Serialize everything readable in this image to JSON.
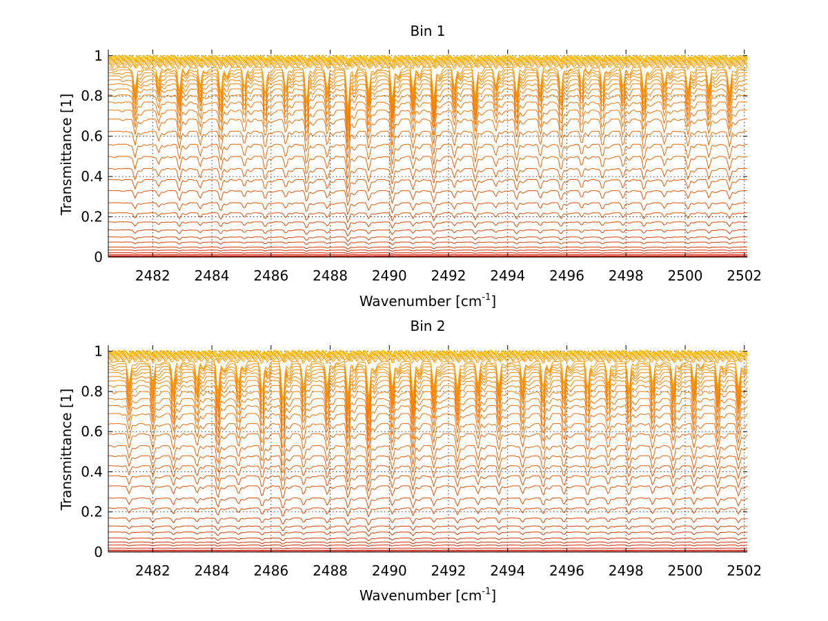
{
  "chart_data": [
    {
      "type": "line",
      "title": "Bin 1",
      "xlabel": "Wavenumber [cm",
      "xlabel_sup": "-1",
      "xlabel_end": "]",
      "ylabel": "Transmittance [1]",
      "xlim": [
        2480.5,
        2502.1
      ],
      "ylim": [
        0,
        1.03
      ],
      "xticks": [
        2482,
        2484,
        2486,
        2488,
        2490,
        2492,
        2494,
        2496,
        2498,
        2500,
        2502
      ],
      "xtick_labels": [
        "2482",
        "2484",
        "2486",
        "2488",
        "2490",
        "2492",
        "2494",
        "2496",
        "2498",
        "2500",
        "2502"
      ],
      "yticks": [
        0,
        0.2,
        0.4,
        0.6,
        0.8,
        1
      ],
      "ytick_labels": [
        "0",
        "0.2",
        "0.4",
        "0.6",
        "0.8",
        "1"
      ],
      "grid": true,
      "series_baselines": [
        0.0,
        0.003,
        0.007,
        0.013,
        0.022,
        0.035,
        0.05,
        0.075,
        0.1,
        0.135,
        0.175,
        0.22,
        0.27,
        0.33,
        0.385,
        0.44,
        0.5,
        0.56,
        0.625,
        0.685,
        0.73,
        0.77,
        0.805,
        0.835,
        0.86,
        0.88,
        0.9,
        0.915,
        0.93,
        0.942,
        0.952,
        0.96,
        0.967,
        0.973,
        0.978,
        0.982,
        0.986,
        0.989,
        0.992,
        0.994
      ],
      "absorption_lines": [
        2481.4,
        2482.2,
        2482.9,
        2483.6,
        2484.3,
        2485.1,
        2485.8,
        2486.5,
        2487.2,
        2487.9,
        2488.6,
        2489.3,
        2490.1,
        2490.8,
        2491.5,
        2492.2,
        2492.9,
        2493.6,
        2494.3,
        2495.1,
        2495.8,
        2496.5,
        2497.2,
        2497.9,
        2498.6,
        2499.3,
        2500.1,
        2500.8,
        2501.5
      ],
      "line_depths": [
        0.5,
        0.35,
        0.55,
        0.45,
        0.6,
        0.4,
        0.55,
        0.45,
        0.7,
        0.5,
        0.9,
        0.6,
        0.75,
        0.5,
        0.7,
        0.45,
        0.6,
        0.4,
        0.55,
        0.45,
        0.6,
        0.4,
        0.5,
        0.45,
        0.55,
        0.4,
        0.5,
        0.45,
        0.55
      ],
      "series_colors": [
        "#c00000",
        "#c80c00",
        "#cc1400",
        "#d01e00",
        "#d22600",
        "#d42e00",
        "#d63400",
        "#d83a00",
        "#da4000",
        "#dc4400",
        "#de4800",
        "#e04c00",
        "#e25000",
        "#e45400",
        "#e65800",
        "#e85c00",
        "#ea6000",
        "#ec6400",
        "#ee6800",
        "#f06c00",
        "#f27000",
        "#f47400",
        "#f67800",
        "#f77c00",
        "#f88000",
        "#f98400",
        "#fa8800",
        "#fb8c00",
        "#fc9000",
        "#fd9400",
        "#fe9800",
        "#ff9c00",
        "#ffa000",
        "#ffa400",
        "#ffa800",
        "#ffac00",
        "#ffb000",
        "#ffb400",
        "#ffb800",
        "#ffbc00"
      ]
    },
    {
      "type": "line",
      "title": "Bin 2",
      "xlabel": "Wavenumber [cm",
      "xlabel_sup": "-1",
      "xlabel_end": "]",
      "ylabel": "Transmittance [1]",
      "xlim": [
        2480.5,
        2502.1
      ],
      "ylim": [
        0,
        1.03
      ],
      "xticks": [
        2482,
        2484,
        2486,
        2488,
        2490,
        2492,
        2494,
        2496,
        2498,
        2500,
        2502
      ],
      "xtick_labels": [
        "2482",
        "2484",
        "2486",
        "2488",
        "2490",
        "2492",
        "2494",
        "2496",
        "2498",
        "2500",
        "2502"
      ],
      "yticks": [
        0,
        0.2,
        0.4,
        0.6,
        0.8,
        1
      ],
      "ytick_labels": [
        "0",
        "0.2",
        "0.4",
        "0.6",
        "0.8",
        "1"
      ],
      "grid": true,
      "series_baselines": [
        0.0,
        0.005,
        0.01,
        0.02,
        0.035,
        0.05,
        0.07,
        0.1,
        0.13,
        0.17,
        0.22,
        0.27,
        0.33,
        0.38,
        0.43,
        0.48,
        0.53,
        0.59,
        0.64,
        0.69,
        0.73,
        0.765,
        0.8,
        0.83,
        0.855,
        0.875,
        0.895,
        0.91,
        0.925,
        0.938,
        0.95,
        0.96,
        0.968,
        0.975,
        0.98,
        0.985,
        0.989,
        0.992,
        0.995,
        0.997
      ],
      "absorption_lines": [
        2481.2,
        2482.0,
        2482.7,
        2483.5,
        2484.2,
        2484.9,
        2485.7,
        2486.4,
        2487.1,
        2487.9,
        2488.6,
        2489.3,
        2490.1,
        2490.8,
        2491.5,
        2492.3,
        2493.0,
        2493.7,
        2494.5,
        2495.2,
        2495.9,
        2496.7,
        2497.4,
        2498.1,
        2498.9,
        2499.6,
        2500.3,
        2501.1,
        2501.8
      ],
      "line_depths": [
        0.45,
        0.5,
        0.55,
        0.45,
        0.7,
        0.5,
        0.65,
        0.8,
        0.55,
        0.6,
        0.75,
        0.85,
        0.6,
        0.7,
        0.55,
        0.6,
        0.5,
        0.55,
        0.5,
        0.6,
        0.5,
        0.55,
        0.5,
        0.55,
        0.5,
        0.6,
        0.5,
        0.55,
        0.6
      ],
      "series_colors": [
        "#c00000",
        "#c80c00",
        "#cc1400",
        "#d01e00",
        "#d22600",
        "#d42e00",
        "#d63400",
        "#d83a00",
        "#da4000",
        "#dc4400",
        "#de4800",
        "#e04c00",
        "#e25000",
        "#e45400",
        "#e65800",
        "#e85c00",
        "#ea6000",
        "#ec6400",
        "#ee6800",
        "#f06c00",
        "#f27000",
        "#f47400",
        "#f67800",
        "#f77c00",
        "#f88000",
        "#f98400",
        "#fa8800",
        "#fb8c00",
        "#fc9000",
        "#fd9400",
        "#fe9800",
        "#ff9c00",
        "#ffa000",
        "#ffa400",
        "#ffa800",
        "#ffac00",
        "#ffb000",
        "#ffb400",
        "#ffb800",
        "#ffbc00"
      ]
    }
  ]
}
